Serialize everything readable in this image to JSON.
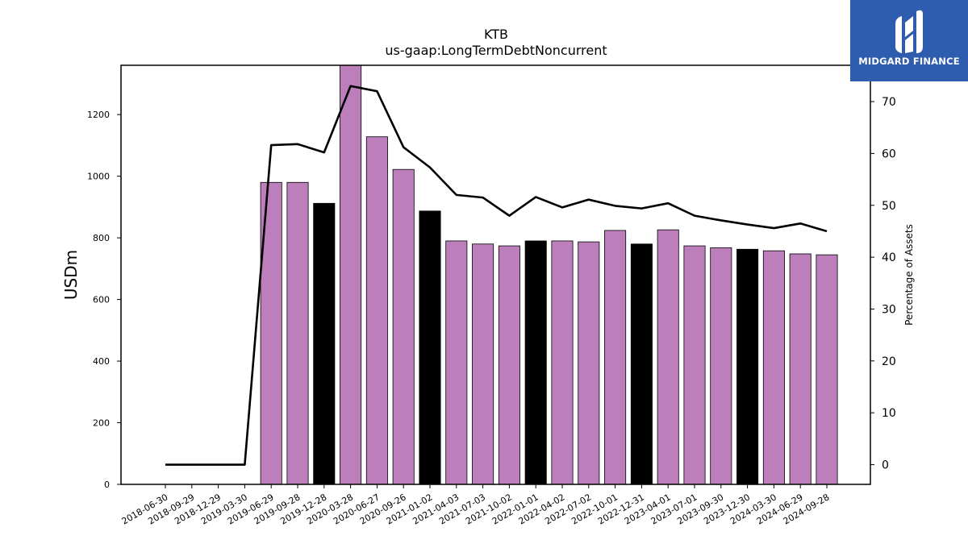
{
  "chart_data": {
    "type": "bar",
    "title": "KTB",
    "subtitle": "us-gaap:LongTermDebtNoncurrent",
    "ylabel": "USDm",
    "y2label": "Percentage of Assets",
    "ylim": [
      0,
      1360
    ],
    "y2lim": [
      -3.8,
      77
    ],
    "yticks": [
      "0",
      "200",
      "400",
      "600",
      "800",
      "1000",
      "1200"
    ],
    "y2ticks": [
      "0",
      "10",
      "20",
      "30",
      "40",
      "50",
      "60",
      "70"
    ],
    "categories": [
      "2018-06-30",
      "2018-09-29",
      "2018-12-29",
      "2019-03-30",
      "2019-06-29",
      "2019-09-28",
      "2019-12-28",
      "2020-03-28",
      "2020-06-27",
      "2020-09-26",
      "2021-01-02",
      "2021-04-03",
      "2021-07-03",
      "2021-10-02",
      "2022-01-01",
      "2022-04-02",
      "2022-07-02",
      "2022-10-01",
      "2022-12-31",
      "2023-04-01",
      "2023-07-01",
      "2023-09-30",
      "2023-12-30",
      "2024-03-30",
      "2024-06-29",
      "2024-09-28"
    ],
    "series": [
      {
        "kind": "bar",
        "values": [
          0,
          0,
          0,
          0,
          980,
          980,
          912,
          1360,
          1128,
          1022,
          887,
          790,
          780,
          774,
          790,
          790,
          787,
          824,
          780,
          826,
          774,
          768,
          763,
          758,
          748,
          745
        ],
        "highlight": [
          false,
          false,
          false,
          false,
          false,
          false,
          true,
          false,
          false,
          false,
          true,
          false,
          false,
          false,
          true,
          false,
          false,
          false,
          true,
          false,
          false,
          false,
          true,
          false,
          false,
          false
        ]
      },
      {
        "kind": "line",
        "axis": "right",
        "values": [
          0,
          0,
          0,
          0,
          61.6,
          61.8,
          60.2,
          73.0,
          72.0,
          61.2,
          57.3,
          52.0,
          51.5,
          48.0,
          51.6,
          49.6,
          51.1,
          49.9,
          49.4,
          50.4,
          48.0,
          47.1,
          46.3,
          45.6,
          46.5,
          45.0
        ]
      }
    ],
    "colors": {
      "bar": "#bc7fbc",
      "bar_highlight": "#000000",
      "line": "#000000"
    },
    "grid": false
  },
  "branding": {
    "name": "MIDGARD FINANCE"
  }
}
